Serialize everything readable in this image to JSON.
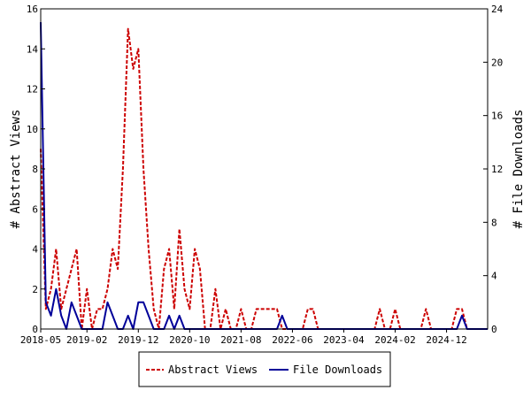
{
  "chart_data": {
    "type": "line",
    "ylabel": "# Abstract Views",
    "y2label": "# File Downloads",
    "ylim": [
      0,
      16
    ],
    "y2lim": [
      0,
      24
    ],
    "yticks": [
      "0",
      "2",
      "4",
      "6",
      "8",
      "10",
      "12",
      "14",
      "16"
    ],
    "y2ticks": [
      "0",
      "4",
      "8",
      "12",
      "16",
      "20",
      "24"
    ],
    "xlim": [
      "2018-05",
      "2025-08"
    ],
    "xticks": [
      "2018-05",
      "2019-02",
      "2019-12",
      "2020-10",
      "2021-08",
      "2022-06",
      "2023-04",
      "2024-02",
      "2024-12"
    ],
    "grid": false,
    "legend_position": "bottom",
    "series": [
      {
        "name": "Abstract Views",
        "axis": "left",
        "color": "#cc0000",
        "dash": "dashed",
        "x": [
          "2018-05",
          "2018-06",
          "2018-07",
          "2018-08",
          "2018-09",
          "2018-10",
          "2018-11",
          "2018-12",
          "2019-01",
          "2019-02",
          "2019-03",
          "2019-04",
          "2019-05",
          "2019-06",
          "2019-07",
          "2019-08",
          "2019-09",
          "2019-10",
          "2019-11",
          "2019-12",
          "2020-01",
          "2020-02",
          "2020-03",
          "2020-04",
          "2020-05",
          "2020-06",
          "2020-07",
          "2020-08",
          "2020-09",
          "2020-10",
          "2020-11",
          "2020-12",
          "2021-01",
          "2021-02",
          "2021-03",
          "2021-04",
          "2021-05",
          "2021-06",
          "2021-07",
          "2021-08",
          "2021-09",
          "2021-10",
          "2021-11",
          "2021-12",
          "2022-01",
          "2022-02",
          "2022-03",
          "2022-04",
          "2022-05",
          "2022-06",
          "2022-07",
          "2022-08",
          "2022-09",
          "2022-10",
          "2022-11",
          "2022-12",
          "2023-01",
          "2023-02",
          "2023-03",
          "2023-04",
          "2023-05",
          "2023-06",
          "2023-07",
          "2023-08",
          "2023-09",
          "2023-10",
          "2023-11",
          "2023-12",
          "2024-01",
          "2024-02",
          "2024-03",
          "2024-04",
          "2024-05",
          "2024-06",
          "2024-07",
          "2024-08",
          "2024-09",
          "2024-10",
          "2024-11",
          "2024-12",
          "2025-01",
          "2025-02",
          "2025-03",
          "2025-04",
          "2025-05",
          "2025-06",
          "2025-07",
          "2025-08"
        ],
        "values": [
          9,
          1,
          2,
          4,
          1,
          2,
          3,
          4,
          0,
          2,
          0,
          1,
          1,
          2,
          4,
          3,
          8,
          15,
          13,
          14,
          8,
          4,
          1,
          0,
          3,
          4,
          1,
          5,
          2,
          1,
          4,
          3,
          0,
          0,
          2,
          0,
          1,
          0,
          0,
          1,
          0,
          0,
          1,
          1,
          1,
          1,
          1,
          0,
          0,
          0,
          0,
          0,
          1,
          1,
          0,
          0,
          0,
          0,
          0,
          0,
          0,
          0,
          0,
          0,
          0,
          0,
          1,
          0,
          0,
          1,
          0,
          0,
          0,
          0,
          0,
          1,
          0,
          0,
          0,
          0,
          0,
          1,
          1,
          0,
          0,
          0,
          0,
          0
        ]
      },
      {
        "name": "File Downloads",
        "axis": "right",
        "color": "#000099",
        "dash": "solid",
        "x": [
          "2018-05",
          "2018-06",
          "2018-07",
          "2018-08",
          "2018-09",
          "2018-10",
          "2018-11",
          "2018-12",
          "2019-01",
          "2019-02",
          "2019-03",
          "2019-04",
          "2019-05",
          "2019-06",
          "2019-07",
          "2019-08",
          "2019-09",
          "2019-10",
          "2019-11",
          "2019-12",
          "2020-01",
          "2020-02",
          "2020-03",
          "2020-04",
          "2020-05",
          "2020-06",
          "2020-07",
          "2020-08",
          "2020-09",
          "2020-10",
          "2020-11",
          "2020-12",
          "2021-01",
          "2021-02",
          "2021-03",
          "2021-04",
          "2021-05",
          "2021-06",
          "2021-07",
          "2021-08",
          "2021-09",
          "2021-10",
          "2021-11",
          "2021-12",
          "2022-01",
          "2022-02",
          "2022-03",
          "2022-04",
          "2022-05",
          "2022-06",
          "2022-07",
          "2022-08",
          "2022-09",
          "2022-10",
          "2022-11",
          "2022-12",
          "2023-01",
          "2023-02",
          "2023-03",
          "2023-04",
          "2023-05",
          "2023-06",
          "2023-07",
          "2023-08",
          "2023-09",
          "2023-10",
          "2023-11",
          "2023-12",
          "2024-01",
          "2024-02",
          "2024-03",
          "2024-04",
          "2024-05",
          "2024-06",
          "2024-07",
          "2024-08",
          "2024-09",
          "2024-10",
          "2024-11",
          "2024-12",
          "2025-01",
          "2025-02",
          "2025-03",
          "2025-04",
          "2025-05",
          "2025-06",
          "2025-07",
          "2025-08"
        ],
        "values": [
          23,
          2,
          1,
          3,
          1,
          0,
          2,
          1,
          0,
          0,
          0,
          0,
          0,
          2,
          1,
          0,
          0,
          1,
          0,
          2,
          2,
          1,
          0,
          0,
          0,
          1,
          0,
          1,
          0,
          0,
          0,
          0,
          0,
          0,
          0,
          0,
          0,
          0,
          0,
          0,
          0,
          0,
          0,
          0,
          0,
          0,
          0,
          1,
          0,
          0,
          0,
          0,
          0,
          0,
          0,
          0,
          0,
          0,
          0,
          0,
          0,
          0,
          0,
          0,
          0,
          0,
          0,
          0,
          0,
          0,
          0,
          0,
          0,
          0,
          0,
          0,
          0,
          0,
          0,
          0,
          0,
          0,
          1,
          0,
          0,
          0,
          0,
          0
        ]
      }
    ]
  }
}
